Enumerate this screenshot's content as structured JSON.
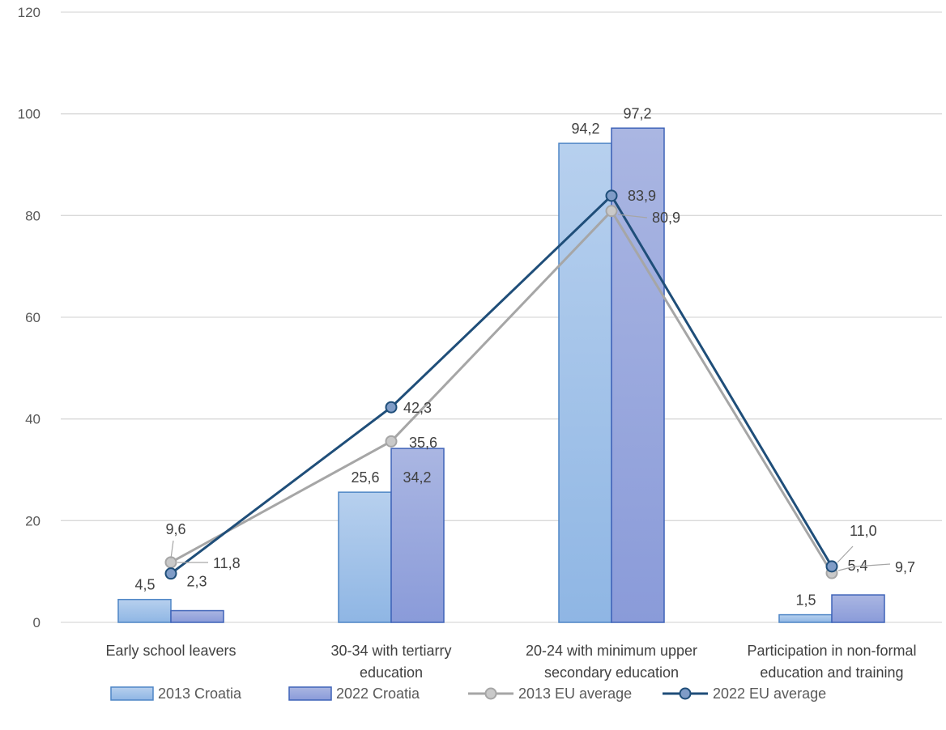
{
  "chart_data": {
    "type": "bar",
    "categories": [
      [
        "Early school leavers"
      ],
      [
        "30-34 with tertiarry",
        "education"
      ],
      [
        "20-24 with minimum upper",
        "secondary education"
      ],
      [
        "Participation in non-formal",
        "education and training"
      ]
    ],
    "y_ticks": [
      "0",
      "20",
      "40",
      "60",
      "80",
      "100",
      "120"
    ],
    "ylim": [
      0,
      120
    ],
    "grid": true,
    "legend_position": "bottom",
    "bar_series": [
      {
        "name": "2013 Croatia",
        "values": [
          4.5,
          25.6,
          94.2,
          1.5
        ],
        "labels": [
          "4,5",
          "25,6",
          "94,2",
          "1,5"
        ],
        "color_top": "#b7d0ee",
        "color_bottom": "#8fb6e4",
        "stroke": "#4f86c6"
      },
      {
        "name": "2022 Croatia",
        "values": [
          2.3,
          34.2,
          97.2,
          5.4
        ],
        "labels": [
          "2,3",
          "34,2",
          "97,2",
          "5,4"
        ],
        "color_top": "#aab6e2",
        "color_bottom": "#8a9bd9",
        "stroke": "#3f63b8"
      }
    ],
    "line_series": [
      {
        "name": "2013 EU average",
        "values": [
          11.8,
          35.6,
          80.9,
          9.7
        ],
        "labels": [
          "11,8",
          "35,6",
          "80,9",
          "9,7"
        ],
        "color": "#a6a6a6",
        "marker_fill": "#c9c9c9"
      },
      {
        "name": "2022 EU average",
        "values": [
          9.6,
          42.3,
          83.9,
          11.0
        ],
        "labels": [
          "9,6",
          "42,3",
          "83,9",
          "11,0"
        ],
        "color": "#1f4e79",
        "marker_fill": "#7f9cc7"
      }
    ]
  }
}
